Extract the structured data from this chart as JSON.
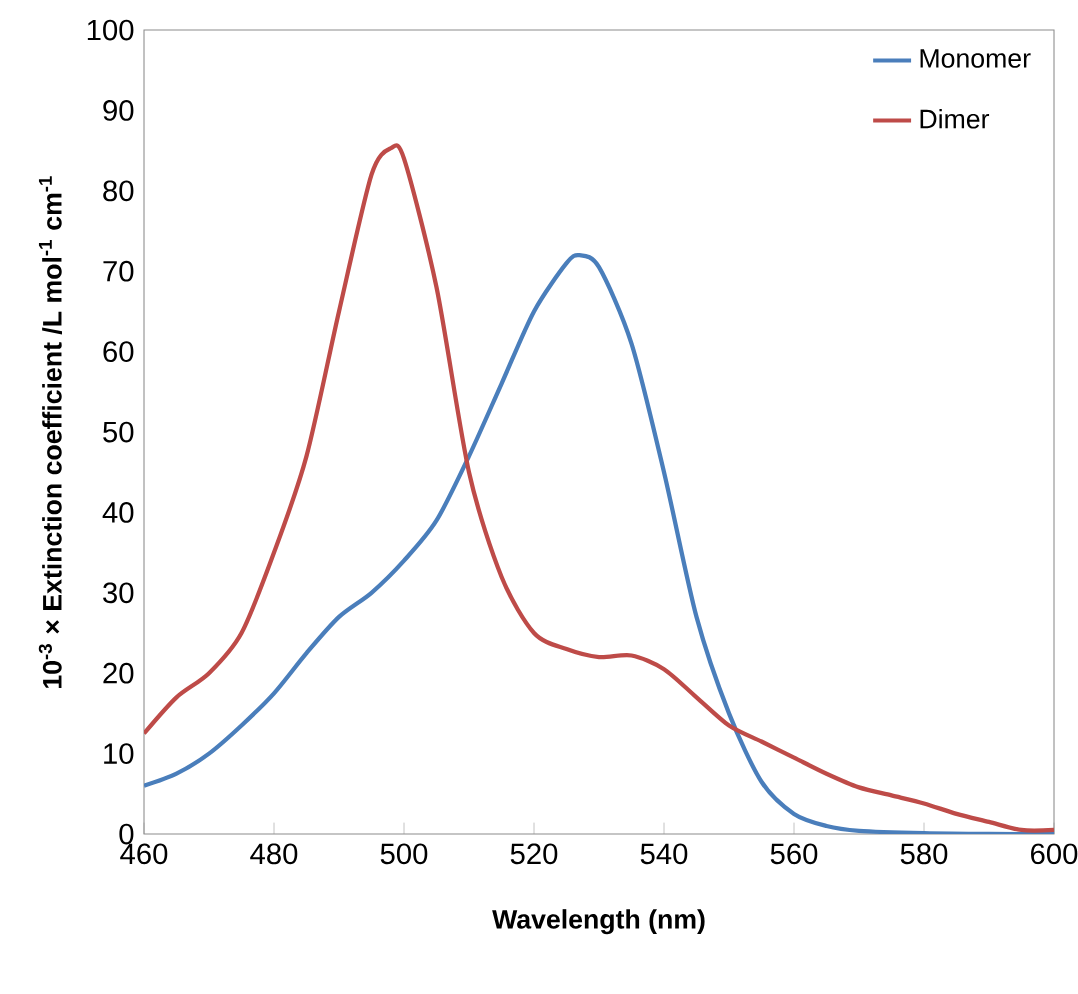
{
  "chart_data": {
    "type": "line",
    "xlabel": "Wavelength (nm)",
    "ylabel": "10$^{-3}$ × Extinction coefficient /L mol$^{-1}$ cm$^{-1}$",
    "xlim": [
      460,
      600
    ],
    "ylim": [
      0,
      100
    ],
    "xticks": [
      460,
      480,
      500,
      520,
      540,
      560,
      580,
      600
    ],
    "yticks": [
      0,
      10,
      20,
      30,
      40,
      50,
      60,
      70,
      80,
      90,
      100
    ],
    "grid": false,
    "legend": "top right",
    "marker": "none",
    "line_style": "solid",
    "series": [
      {
        "name": "Monomer",
        "color": "#4a7ebb",
        "x": [
          460,
          465,
          470,
          475,
          480,
          485,
          490,
          495,
          500,
          505,
          510,
          515,
          520,
          525,
          527,
          530,
          535,
          540,
          545,
          550,
          555,
          560,
          565,
          570,
          580,
          590,
          600
        ],
        "values": [
          6,
          7.5,
          10,
          13.5,
          17.5,
          22.5,
          27,
          30,
          34,
          39,
          47,
          56,
          65,
          71,
          72,
          70.5,
          61,
          45,
          27,
          15,
          6.5,
          2.5,
          1,
          0.4,
          0.1,
          0,
          0
        ]
      },
      {
        "name": "Dimer",
        "color": "#be4b48",
        "x": [
          460,
          465,
          470,
          475,
          480,
          485,
          490,
          495,
          498,
          500,
          505,
          510,
          515,
          520,
          525,
          530,
          535,
          540,
          545,
          550,
          555,
          560,
          565,
          570,
          575,
          580,
          585,
          590,
          595,
          600
        ],
        "values": [
          12.5,
          17,
          20,
          25,
          35,
          47,
          65,
          82,
          85.3,
          84,
          68,
          45,
          32,
          25,
          23,
          22,
          22.2,
          20.5,
          17,
          13.5,
          11.5,
          9.5,
          7.5,
          5.8,
          4.8,
          3.8,
          2.5,
          1.5,
          0.5,
          0.5
        ]
      }
    ]
  }
}
